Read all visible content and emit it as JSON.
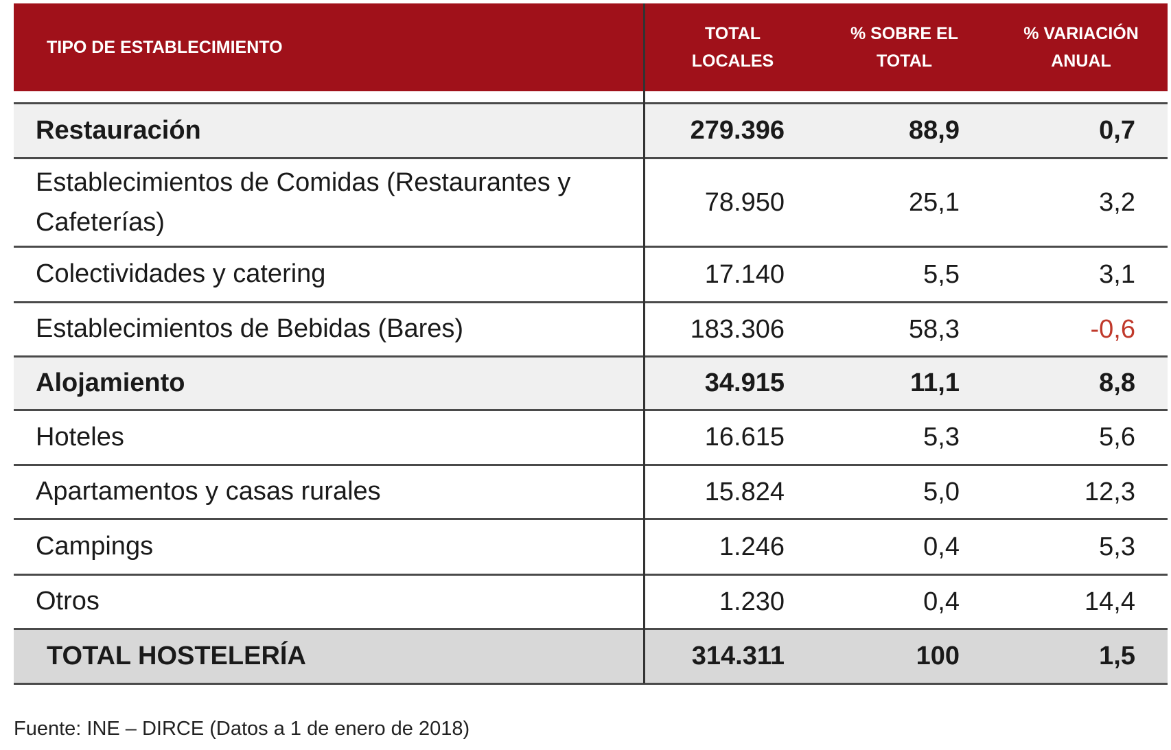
{
  "table": {
    "header": [
      "TIPO DE ESTABLECIMIENTO",
      "TOTAL LOCALES",
      "% SOBRE EL TOTAL",
      "% VARIACIÓN ANUAL"
    ],
    "rows": [
      [
        "Restauración",
        "279.396",
        "88,9",
        "0,7"
      ],
      [
        "Establecimientos de Comidas (Restaurantes y Cafeterías)",
        "78.950",
        "25,1",
        "3,2"
      ],
      [
        "Colectividades y catering",
        "17.140",
        "5,5",
        "3,1"
      ],
      [
        "Establecimientos de Bebidas (Bares)",
        "183.306",
        "58,3",
        "-0,6"
      ],
      [
        "Alojamiento",
        "34.915",
        "11,1",
        "8,8"
      ],
      [
        "Hoteles",
        "16.615",
        "5,3",
        "5,6"
      ],
      [
        "Apartamentos y casas rurales",
        "15.824",
        "5,0",
        "12,3"
      ],
      [
        "Campings",
        "1.246",
        "0,4",
        "5,3"
      ],
      [
        "Otros",
        "1.230",
        "0,4",
        "14,4"
      ]
    ],
    "total": [
      "TOTAL HOSTELERÍA",
      "314.311",
      "100",
      "1,5"
    ]
  },
  "footer": {
    "source": "Fuente: INE – DIRCE (Datos a 1 de enero de 2018)"
  }
}
